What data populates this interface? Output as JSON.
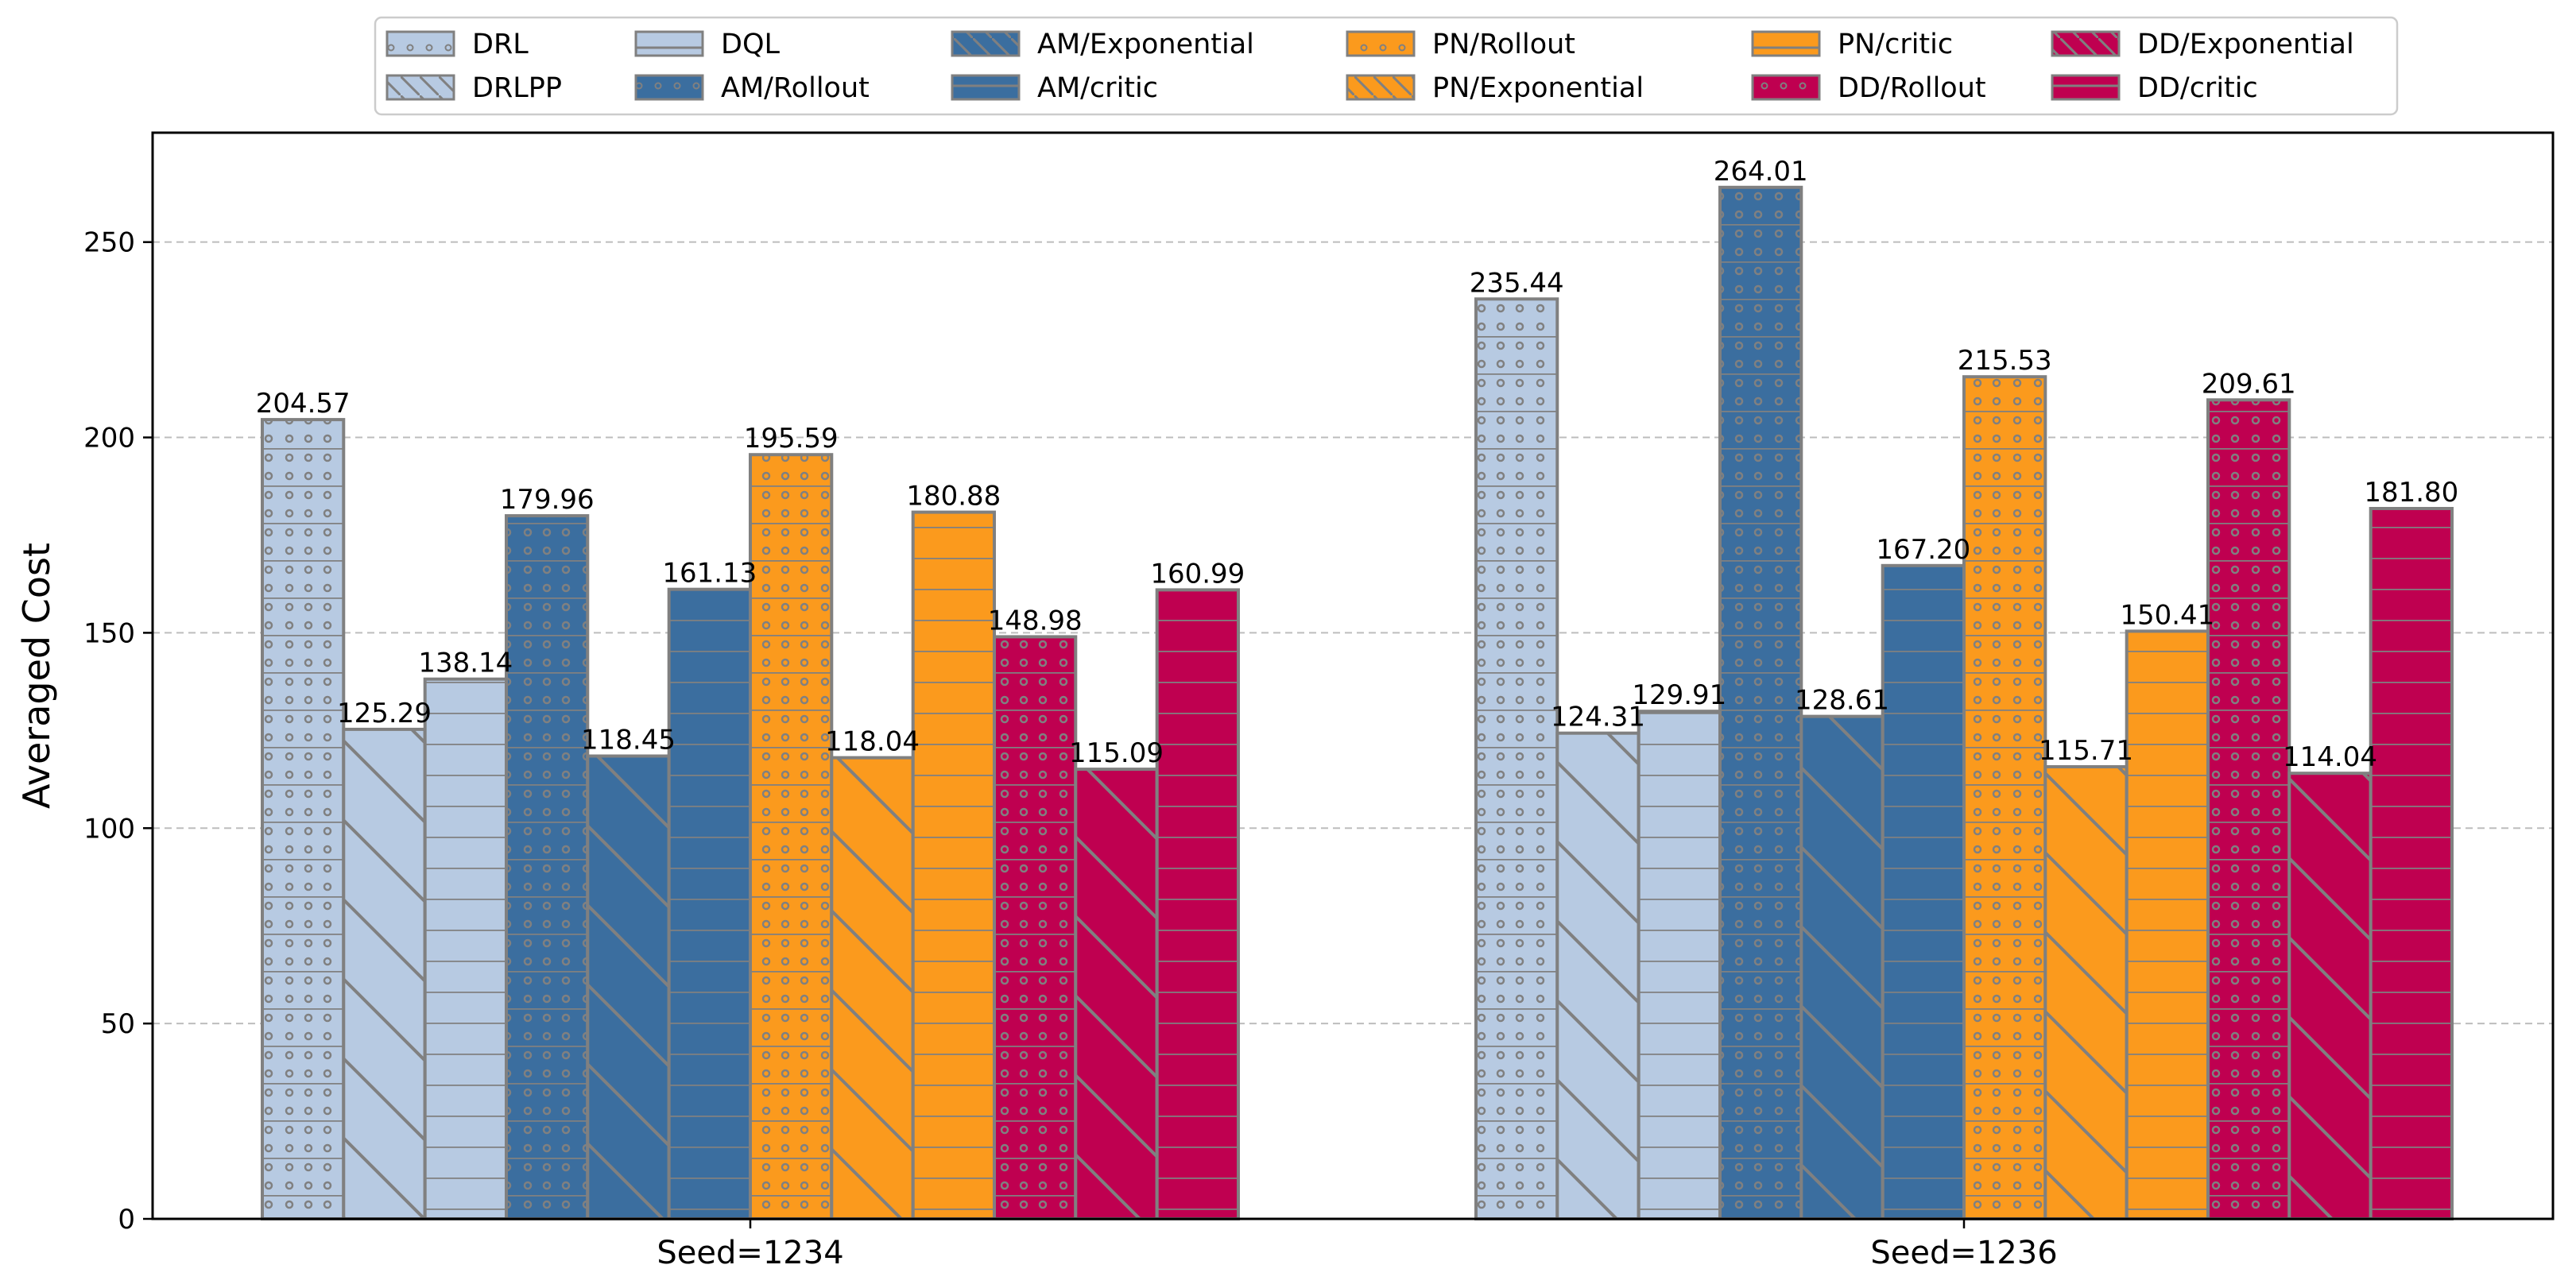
{
  "chart_data": {
    "type": "bar",
    "title": "",
    "xlabel": "",
    "ylabel": "Averaged Cost",
    "ylim": [
      0,
      278
    ],
    "yticks": [
      0,
      50,
      100,
      150,
      200,
      250
    ],
    "grid": "y-dashed",
    "legend_position": "top-center",
    "categories": [
      "Seed=1234",
      "Seed=1236"
    ],
    "series": [
      {
        "name": "DRL",
        "values": [
          204.57,
          235.44
        ],
        "color": "#b7cae2",
        "hatch": "dots-rows"
      },
      {
        "name": "DRLPP",
        "values": [
          125.29,
          124.31
        ],
        "color": "#b7cae2",
        "hatch": "diagonal"
      },
      {
        "name": "DQL",
        "values": [
          138.14,
          129.91
        ],
        "color": "#b7cae2",
        "hatch": "horizontal"
      },
      {
        "name": "AM/Rollout",
        "values": [
          179.96,
          264.01
        ],
        "color": "#3b6e9f",
        "hatch": "dots-rows"
      },
      {
        "name": "AM/Exponential",
        "values": [
          118.45,
          128.61
        ],
        "color": "#3b6e9f",
        "hatch": "diagonal"
      },
      {
        "name": "AM/critic",
        "values": [
          161.13,
          167.2
        ],
        "color": "#3b6e9f",
        "hatch": "horizontal"
      },
      {
        "name": "PN/Rollout",
        "values": [
          195.59,
          215.53
        ],
        "color": "#fb9a1d",
        "hatch": "dots-rows"
      },
      {
        "name": "PN/Exponential",
        "values": [
          118.04,
          115.71
        ],
        "color": "#fb9a1d",
        "hatch": "diagonal"
      },
      {
        "name": "PN/critic",
        "values": [
          180.88,
          150.41
        ],
        "color": "#fb9a1d",
        "hatch": "horizontal"
      },
      {
        "name": "DD/Rollout",
        "values": [
          148.98,
          209.61
        ],
        "color": "#bf0050",
        "hatch": "dots-rows"
      },
      {
        "name": "DD/Exponential",
        "values": [
          115.09,
          114.04
        ],
        "color": "#bf0050",
        "hatch": "diagonal"
      },
      {
        "name": "DD/critic",
        "values": [
          160.99,
          181.8
        ],
        "color": "#bf0050",
        "hatch": "horizontal"
      }
    ],
    "value_labels": [
      [
        "204.57",
        "125.29",
        "138.14",
        "179.96",
        "118.45",
        "161.13",
        "195.59",
        "118.04",
        "180.88",
        "148.98",
        "115.09",
        "160.99"
      ],
      [
        "235.44",
        "124.31",
        "129.91",
        "264.01",
        "128.61",
        "167.20",
        "215.53",
        "115.71",
        "150.41",
        "209.61",
        "114.04",
        "181.80"
      ]
    ],
    "legend_order": [
      "DRL",
      "DRLPP",
      "DQL",
      "AM/Rollout",
      "AM/Exponential",
      "AM/critic",
      "PN/Rollout",
      "PN/Exponential",
      "PN/critic",
      "DD/Rollout",
      "DD/Exponential",
      "DD/critic"
    ],
    "edge_color": "#808080"
  }
}
